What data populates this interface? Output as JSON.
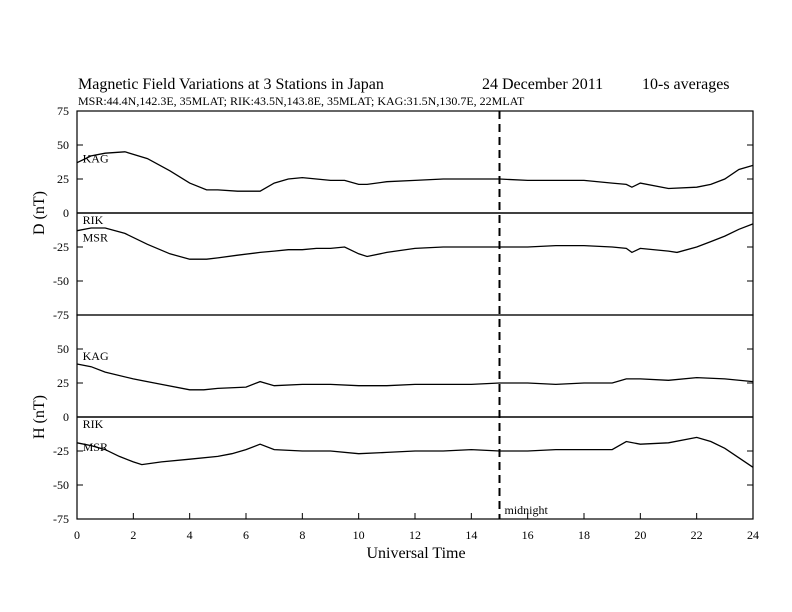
{
  "title": {
    "main": "Magnetic Field Variations at 3 Stations in Japan",
    "date": "24 December 2011",
    "averaging": "10-s averages",
    "stations_line": "MSR:44.4N,142.3E, 35MLAT;  RIK:43.5N,143.8E, 35MLAT;  KAG:31.5N,130.7E, 22MLAT"
  },
  "chart_data": {
    "type": "line",
    "xlabel": "Universal Time",
    "xlim": [
      0,
      24
    ],
    "x_ticks": [
      0,
      2,
      4,
      6,
      8,
      10,
      12,
      14,
      16,
      18,
      20,
      22,
      24
    ],
    "marker": {
      "x": 15,
      "label": "midnight",
      "style": "dashed"
    },
    "panels": [
      {
        "ylabel": "D (nT)",
        "ylim": [
          -75,
          75
        ],
        "y_ticks": [
          75,
          50,
          25,
          0,
          -25,
          -50,
          -75
        ],
        "station_labels": [
          {
            "text": "KAG",
            "x": 0.2,
            "y": 40
          },
          {
            "text": "RIK",
            "x": 0.2,
            "y": -5
          },
          {
            "text": "MSR",
            "x": 0.2,
            "y": -18
          }
        ],
        "series": [
          {
            "x": [
              0,
              0.5,
              1,
              1.7,
              2.5,
              3.3,
              4,
              4.6,
              5,
              5.7,
              6.5,
              7,
              7.5,
              8,
              8.5,
              9,
              9.5,
              10,
              10.3,
              11,
              12,
              13,
              14,
              15,
              16,
              17,
              18,
              19,
              19.5,
              19.7,
              20,
              21,
              22,
              22.5,
              23,
              23.5,
              24
            ],
            "y": [
              37,
              42,
              44,
              45,
              40,
              31,
              22,
              17,
              17,
              16,
              16,
              22,
              25,
              26,
              25,
              24,
              24,
              21,
              21,
              23,
              24,
              25,
              25,
              25,
              24,
              24,
              24,
              22,
              21,
              19,
              22,
              18,
              19,
              21,
              25,
              32,
              35
            ]
          },
          {
            "x": [
              0,
              0.5,
              1,
              1.7,
              2.5,
              3.3,
              4,
              4.6,
              5,
              5.7,
              6.5,
              7,
              7.5,
              8,
              8.5,
              9,
              9.5,
              10,
              10.3,
              11,
              12,
              13,
              14,
              15,
              16,
              17,
              18,
              19,
              19.5,
              19.7,
              20,
              21,
              21.3,
              22,
              22.5,
              23,
              23.5,
              24
            ],
            "y": [
              -13,
              -11,
              -11,
              -15,
              -23,
              -30,
              -34,
              -34,
              -33,
              -31,
              -29,
              -28,
              -27,
              -27,
              -26,
              -26,
              -25,
              -30,
              -32,
              -29,
              -26,
              -25,
              -25,
              -25,
              -25,
              -24,
              -24,
              -25,
              -26,
              -29,
              -26,
              -28,
              -29,
              -25,
              -21,
              -17,
              -12,
              -8
            ]
          }
        ]
      },
      {
        "ylabel": "H (nT)",
        "ylim": [
          -75,
          75
        ],
        "y_ticks": [
          50,
          25,
          0,
          -25,
          -50,
          -75
        ],
        "station_labels": [
          {
            "text": "KAG",
            "x": 0.2,
            "y": 45
          },
          {
            "text": "RIK",
            "x": 0.2,
            "y": -5
          },
          {
            "text": "MSR",
            "x": 0.2,
            "y": -22
          }
        ],
        "series": [
          {
            "x": [
              0,
              0.5,
              1,
              2,
              3,
              4,
              4.5,
              5,
              6,
              6.5,
              7,
              8,
              9,
              10,
              11,
              12,
              13,
              14,
              15,
              16,
              17,
              18,
              19,
              19.5,
              20,
              21,
              22,
              23,
              24
            ],
            "y": [
              39,
              37,
              33,
              28,
              24,
              20,
              20,
              21,
              22,
              26,
              23,
              24,
              24,
              23,
              23,
              24,
              24,
              24,
              25,
              25,
              24,
              25,
              25,
              28,
              28,
              27,
              29,
              28,
              26
            ]
          },
          {
            "x": [
              0,
              0.5,
              1,
              1.5,
              2,
              2.3,
              3,
              4,
              5,
              5.5,
              6,
              6.5,
              7,
              8,
              9,
              10,
              11,
              12,
              13,
              14,
              15,
              16,
              17,
              18,
              19,
              19.5,
              20,
              21,
              22,
              22.5,
              23,
              23.5,
              24
            ],
            "y": [
              -19,
              -21,
              -24,
              -29,
              -33,
              -35,
              -33,
              -31,
              -29,
              -27,
              -24,
              -20,
              -24,
              -25,
              -25,
              -27,
              -26,
              -25,
              -25,
              -24,
              -25,
              -25,
              -24,
              -24,
              -24,
              -18,
              -20,
              -19,
              -15,
              -18,
              -23,
              -30,
              -37
            ]
          }
        ]
      }
    ]
  }
}
